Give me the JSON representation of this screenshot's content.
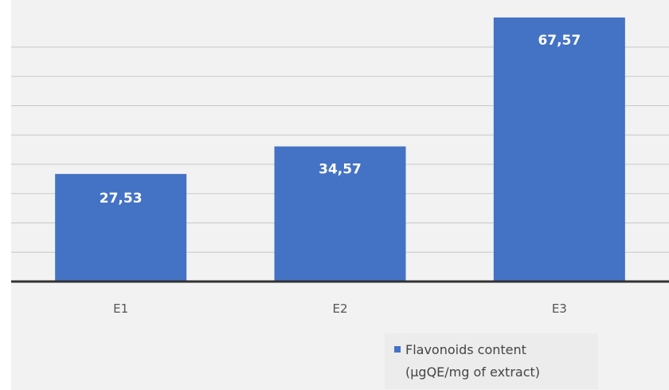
{
  "chart_data": {
    "type": "bar",
    "categories": [
      "E1",
      "E2",
      "E3"
    ],
    "values": [
      27.53,
      34.57,
      67.57
    ],
    "data_labels": [
      "27,53",
      "34,57",
      "67,57"
    ],
    "ylim": [
      0,
      70
    ],
    "grid": true,
    "legend": {
      "position": "bottom",
      "entries": [
        {
          "name_line1": "Flavonoids content",
          "name_line2": "(µgQE/mg of extract)",
          "color": "#4472c4"
        }
      ]
    },
    "colors": {
      "bar": "#4472c4",
      "background": "#f2f2f2"
    }
  }
}
